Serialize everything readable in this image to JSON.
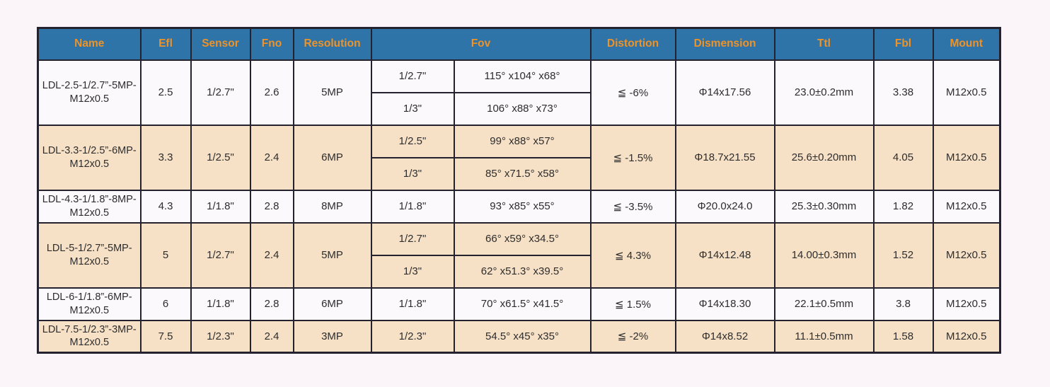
{
  "page": {
    "background": "#fbf4f8"
  },
  "table": {
    "border_color": "#23222e",
    "row_colors": {
      "white": "#fbf9fb",
      "tan": "#f7e1c6"
    },
    "header": {
      "background": "#2e74a8",
      "text_color": "#ef9227",
      "columns": [
        {
          "label": "Name",
          "colspan": 1
        },
        {
          "label": "Efl",
          "colspan": 1
        },
        {
          "label": "Sensor",
          "colspan": 1
        },
        {
          "label": "Fno",
          "colspan": 1
        },
        {
          "label": "Resolution",
          "colspan": 1
        },
        {
          "label": "Fov",
          "colspan": 2
        },
        {
          "label": "Distortion",
          "colspan": 1
        },
        {
          "label": "Dismension",
          "colspan": 1
        },
        {
          "label": "Ttl",
          "colspan": 1
        },
        {
          "label": "Fbl",
          "colspan": 1
        },
        {
          "label": "Mount",
          "colspan": 1
        }
      ]
    },
    "rows": [
      {
        "shade": "white",
        "name": "LDL-2.5-1/2.7”-5MP-M12x0.5",
        "efl": "2.5",
        "sensor": "1/2.7\"",
        "fno": "2.6",
        "resolution": "5MP",
        "fov": [
          {
            "sensor": "1/2.7\"",
            "angles": "115° x104° x68°"
          },
          {
            "sensor": "1/3\"",
            "angles": "106° x88° x73°"
          }
        ],
        "distortion": "≦ -6%",
        "dimension": "Φ14x17.56",
        "ttl": "23.0±0.2mm",
        "fbl": "3.38",
        "mount": "M12x0.5"
      },
      {
        "shade": "tan",
        "name": "LDL-3.3-1/2.5”-6MP-M12x0.5",
        "efl": "3.3",
        "sensor": "1/2.5\"",
        "fno": "2.4",
        "resolution": "6MP",
        "fov": [
          {
            "sensor": "1/2.5\"",
            "angles": "99° x88° x57°"
          },
          {
            "sensor": "1/3\"",
            "angles": "85° x71.5° x58°"
          }
        ],
        "distortion": "≦ -1.5%",
        "dimension": "Φ18.7x21.55",
        "ttl": "25.6±0.20mm",
        "fbl": "4.05",
        "mount": "M12x0.5"
      },
      {
        "shade": "white",
        "name": "LDL-4.3-1/1.8”-8MP-M12x0.5",
        "efl": "4.3",
        "sensor": "1/1.8\"",
        "fno": "2.8",
        "resolution": "8MP",
        "fov": [
          {
            "sensor": "1/1.8\"",
            "angles": "93° x85° x55°"
          }
        ],
        "distortion": "≦ -3.5%",
        "dimension": "Φ20.0x24.0",
        "ttl": "25.3±0.30mm",
        "fbl": "1.82",
        "mount": "M12x0.5"
      },
      {
        "shade": "tan",
        "name": "LDL-5-1/2.7”-5MP-M12x0.5",
        "efl": "5",
        "sensor": "1/2.7\"",
        "fno": "2.4",
        "resolution": "5MP",
        "fov": [
          {
            "sensor": "1/2.7\"",
            "angles": "66° x59° x34.5°"
          },
          {
            "sensor": "1/3\"",
            "angles": "62° x51.3° x39.5°"
          }
        ],
        "distortion": "≦ 4.3%",
        "dimension": "Φ14x12.48",
        "ttl": "14.00±0.3mm",
        "fbl": "1.52",
        "mount": "M12x0.5"
      },
      {
        "shade": "white",
        "name": "LDL-6-1/1.8”-6MP-M12x0.5",
        "efl": "6",
        "sensor": "1/1.8\"",
        "fno": "2.8",
        "resolution": "6MP",
        "fov": [
          {
            "sensor": "1/1.8\"",
            "angles": "70° x61.5° x41.5°"
          }
        ],
        "distortion": "≦ 1.5%",
        "dimension": "Φ14x18.30",
        "ttl": "22.1±0.5mm",
        "fbl": "3.8",
        "mount": "M12x0.5"
      },
      {
        "shade": "tan",
        "name": "LDL-7.5-1/2.3”-3MP-M12x0.5",
        "efl": "7.5",
        "sensor": "1/2.3\"",
        "fno": "2.4",
        "resolution": "3MP",
        "fov": [
          {
            "sensor": "1/2.3\"",
            "angles": "54.5° x45° x35°"
          }
        ],
        "distortion": "≦ -2%",
        "dimension": "Φ14x8.52",
        "ttl": "11.1±0.5mm",
        "fbl": "1.58",
        "mount": "M12x0.5"
      }
    ]
  }
}
